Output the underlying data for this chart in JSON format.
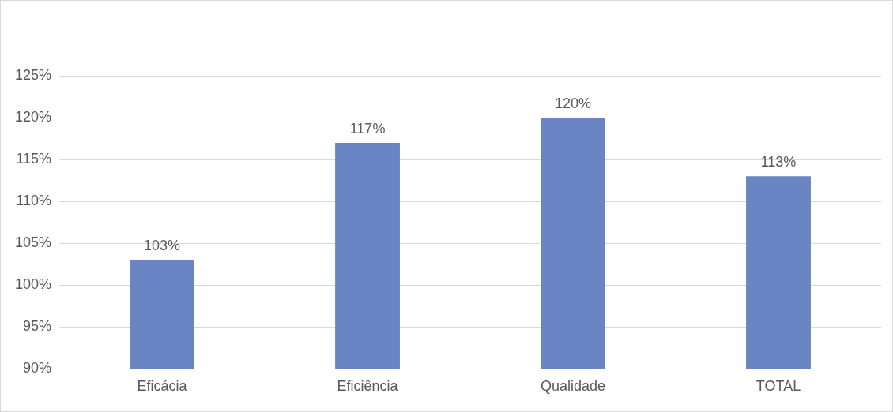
{
  "chart_data": {
    "type": "bar",
    "categories": [
      "Eficácia",
      "Eficiência",
      "Qualidade",
      "TOTAL"
    ],
    "values": [
      103,
      117,
      120,
      113
    ],
    "color": "#6a85c3",
    "value_labels": [
      "103%",
      "117%",
      "120%",
      "113%"
    ],
    "ylim": [
      90,
      125
    ],
    "yticks": [
      {
        "value": 90,
        "label": "90%"
      },
      {
        "value": 95,
        "label": "95%"
      },
      {
        "value": 100,
        "label": "100%"
      },
      {
        "value": 105,
        "label": "105%"
      },
      {
        "value": 110,
        "label": "110%"
      },
      {
        "value": 115,
        "label": "115%"
      },
      {
        "value": 120,
        "label": "120%"
      },
      {
        "value": 125,
        "label": "125%"
      }
    ],
    "grid": "y"
  }
}
